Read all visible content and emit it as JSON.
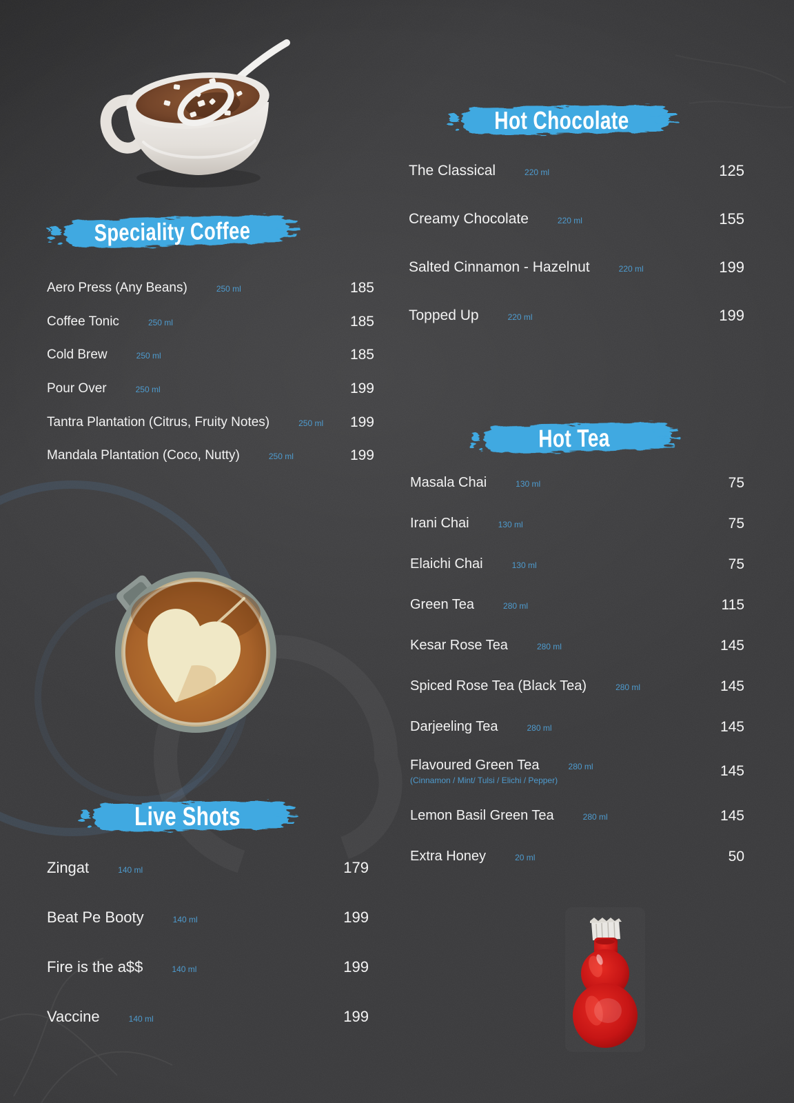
{
  "theme": {
    "background": "#3a3a3c",
    "accent_blue": "#3fa9e1",
    "text_white": "#f3f3f3",
    "size_label_blue": "#4e9bce"
  },
  "sections": [
    {
      "title": "Speciality Coffee",
      "items": [
        {
          "name": "Aero Press (Any Beans)",
          "size": "250 ml",
          "price": "185"
        },
        {
          "name": "Coffee Tonic",
          "size": "250 ml",
          "price": "185"
        },
        {
          "name": "Cold Brew",
          "size": "250 ml",
          "price": "185"
        },
        {
          "name": "Pour Over",
          "size": "250 ml",
          "price": "199"
        },
        {
          "name": "Tantra Plantation (Citrus, Fruity Notes)",
          "size": "250 ml",
          "price": "199"
        },
        {
          "name": "Mandala Plantation (Coco, Nutty)",
          "size": "250 ml",
          "price": "199"
        }
      ]
    },
    {
      "title": "Hot Chocolate",
      "items": [
        {
          "name": "The Classical",
          "size": "220 ml",
          "price": "125"
        },
        {
          "name": "Creamy Chocolate",
          "size": "220 ml",
          "price": "155"
        },
        {
          "name": "Salted Cinnamon - Hazelnut",
          "size": "220 ml",
          "price": "199"
        },
        {
          "name": "Topped Up",
          "size": "220 ml",
          "price": "199"
        }
      ]
    },
    {
      "title": "Hot Tea",
      "items": [
        {
          "name": "Masala Chai",
          "size": "130 ml",
          "price": "75"
        },
        {
          "name": "Irani Chai",
          "size": "130 ml",
          "price": "75"
        },
        {
          "name": "Elaichi Chai",
          "size": "130 ml",
          "price": "75"
        },
        {
          "name": "Green Tea",
          "size": "280 ml",
          "price": "115"
        },
        {
          "name": "Kesar Rose Tea",
          "size": "280 ml",
          "price": "145"
        },
        {
          "name": "Spiced Rose Tea (Black Tea)",
          "size": "280 ml",
          "price": "145"
        },
        {
          "name": "Darjeeling Tea",
          "size": "280 ml",
          "price": "145"
        },
        {
          "name": "Flavoured Green Tea",
          "size": "280 ml",
          "price": "145",
          "note": "(Cinnamon / Mint/ Tulsi / Elichi / Pepper)"
        },
        {
          "name": "Lemon Basil Green Tea",
          "size": "280 ml",
          "price": "145"
        },
        {
          "name": "Extra Honey",
          "size": "20 ml",
          "price": "50"
        }
      ]
    },
    {
      "title": "Live Shots",
      "items": [
        {
          "name": "Zingat",
          "size": "140 ml",
          "price": "179"
        },
        {
          "name": "Beat Pe Booty",
          "size": "140 ml",
          "price": "199"
        },
        {
          "name": "Fire is the a$$",
          "size": "140 ml",
          "price": "199"
        },
        {
          "name": "Vaccine",
          "size": "140 ml",
          "price": "199"
        }
      ]
    }
  ]
}
